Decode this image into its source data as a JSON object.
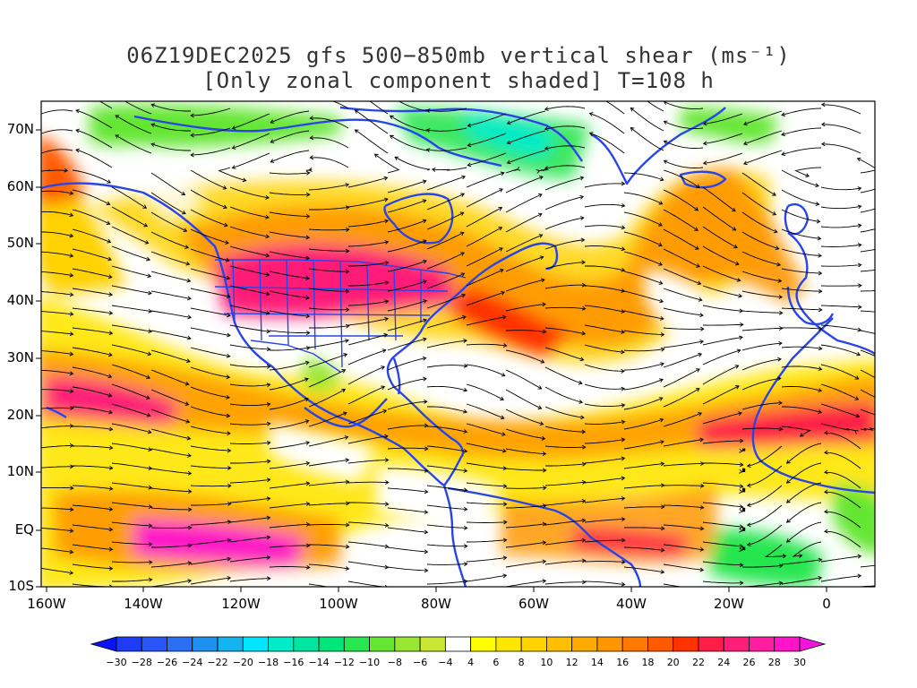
{
  "title_line1": "06Z19DEC2025 gfs 500−850mb vertical shear (ms⁻¹)",
  "title_line2": "[Only zonal component shaded] T=108 h",
  "lon_ticks": [
    "160W",
    "140W",
    "120W",
    "100W",
    "80W",
    "60W",
    "40W",
    "20W",
    "0"
  ],
  "lat_ticks": [
    "70N",
    "60N",
    "50N",
    "40N",
    "30N",
    "20N",
    "10N",
    "EQ",
    "10S"
  ],
  "map_extent": {
    "lon_min": -160,
    "lon_max": 10,
    "lat_min": -10,
    "lat_max": 75
  },
  "colorbar": {
    "labels": [
      "−30",
      "−28",
      "−26",
      "−24",
      "−22",
      "−20",
      "−18",
      "−16",
      "−14",
      "−12",
      "−10",
      "−8",
      "−6",
      "−4",
      "4",
      "6",
      "8",
      "10",
      "12",
      "14",
      "16",
      "18",
      "20",
      "22",
      "24",
      "26",
      "28",
      "30"
    ],
    "colors": [
      "#0a14f0",
      "#1e3cf5",
      "#2855f5",
      "#2a70f5",
      "#1e90f0",
      "#14b4f0",
      "#00e6ff",
      "#00ebc8",
      "#00e6a0",
      "#00e678",
      "#28e650",
      "#64e632",
      "#96e632",
      "#c8e632",
      "#ffffff",
      "#ffff00",
      "#ffe600",
      "#ffd200",
      "#ffbe00",
      "#ffaa00",
      "#ff9600",
      "#ff7800",
      "#ff5a00",
      "#ff3200",
      "#ff1e46",
      "#ff1e78",
      "#ff1ea0",
      "#ff14c8",
      "#f014dc"
    ]
  },
  "colors": {
    "coast": "#2a45e6",
    "streamline": "#000000",
    "frame": "#000000"
  }
}
